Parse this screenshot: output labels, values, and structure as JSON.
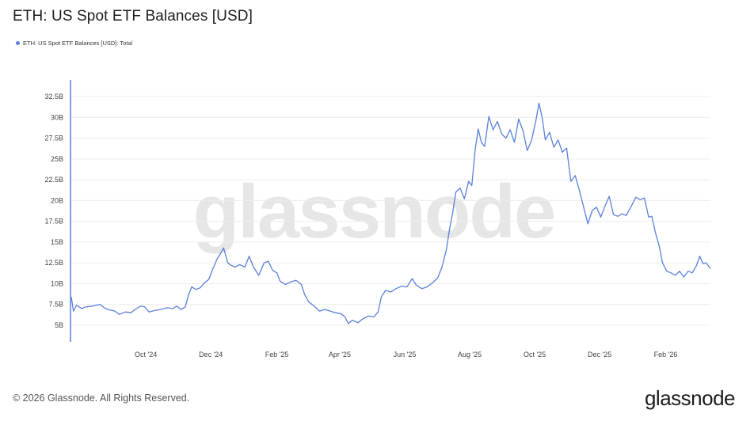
{
  "title": "ETH: US Spot ETF Balances [USD]",
  "legend": {
    "label": "ETH: US Spot ETF Balances [USD]: Total",
    "color": "#5b7fdb"
  },
  "watermark": "glassnode",
  "footer": "© 2026 Glassnode. All Rights Reserved.",
  "brand": "glassnode",
  "chart_data": {
    "type": "line",
    "title": "ETH: US Spot ETF Balances [USD]",
    "xlabel": "",
    "ylabel": "",
    "ylim": [
      3000000000,
      34500000000
    ],
    "x_range": [
      "2024-07-23",
      "2026-03-15"
    ],
    "grid": true,
    "legend_position": "top-left",
    "y_ticks": [
      {
        "value": 5000000000,
        "label": "5B"
      },
      {
        "value": 7500000000,
        "label": "7.5B"
      },
      {
        "value": 10000000000,
        "label": "10B"
      },
      {
        "value": 12500000000,
        "label": "12.5B"
      },
      {
        "value": 15000000000,
        "label": "15B"
      },
      {
        "value": 17500000000,
        "label": "17.5B"
      },
      {
        "value": 20000000000,
        "label": "20B"
      },
      {
        "value": 22500000000,
        "label": "22.5B"
      },
      {
        "value": 25000000000,
        "label": "25B"
      },
      {
        "value": 27500000000,
        "label": "27.5B"
      },
      {
        "value": 30000000000,
        "label": "30B"
      },
      {
        "value": 32500000000,
        "label": "32.5B"
      }
    ],
    "x_ticks": [
      {
        "date": "2024-10-01",
        "label": "Oct '24"
      },
      {
        "date": "2024-12-01",
        "label": "Dec '24"
      },
      {
        "date": "2025-02-01",
        "label": "Feb '25"
      },
      {
        "date": "2025-04-01",
        "label": "Apr '25"
      },
      {
        "date": "2025-06-01",
        "label": "Jun '25"
      },
      {
        "date": "2025-08-01",
        "label": "Aug '25"
      },
      {
        "date": "2025-10-01",
        "label": "Oct '25"
      },
      {
        "date": "2025-12-01",
        "label": "Dec '25"
      },
      {
        "date": "2026-02-01",
        "label": "Feb '26"
      }
    ],
    "series": [
      {
        "name": "ETH: US Spot ETF Balances [USD]: Total",
        "color": "#5b7fdb",
        "points": [
          [
            "2024-07-23",
            8.4
          ],
          [
            "2024-07-25",
            6.7
          ],
          [
            "2024-07-28",
            7.4
          ],
          [
            "2024-08-02",
            7.0
          ],
          [
            "2024-08-05",
            7.2
          ],
          [
            "2024-08-12",
            7.3
          ],
          [
            "2024-08-19",
            7.5
          ],
          [
            "2024-08-23",
            7.1
          ],
          [
            "2024-08-26",
            6.9
          ],
          [
            "2024-09-02",
            6.7
          ],
          [
            "2024-09-06",
            6.3
          ],
          [
            "2024-09-12",
            6.6
          ],
          [
            "2024-09-17",
            6.5
          ],
          [
            "2024-09-21",
            6.9
          ],
          [
            "2024-09-26",
            7.3
          ],
          [
            "2024-09-30",
            7.2
          ],
          [
            "2024-10-04",
            6.6
          ],
          [
            "2024-10-10",
            6.8
          ],
          [
            "2024-10-15",
            6.9
          ],
          [
            "2024-10-21",
            7.1
          ],
          [
            "2024-10-26",
            7.0
          ],
          [
            "2024-10-30",
            7.3
          ],
          [
            "2024-11-03",
            6.9
          ],
          [
            "2024-11-07",
            7.2
          ],
          [
            "2024-11-10",
            8.6
          ],
          [
            "2024-11-13",
            9.6
          ],
          [
            "2024-11-17",
            9.3
          ],
          [
            "2024-11-21",
            9.5
          ],
          [
            "2024-11-25",
            10.1
          ],
          [
            "2024-11-29",
            10.5
          ],
          [
            "2024-12-03",
            11.8
          ],
          [
            "2024-12-07",
            13.0
          ],
          [
            "2024-12-10",
            13.6
          ],
          [
            "2024-12-13",
            14.3
          ],
          [
            "2024-12-17",
            12.5
          ],
          [
            "2024-12-20",
            12.2
          ],
          [
            "2024-12-24",
            12.0
          ],
          [
            "2024-12-28",
            12.3
          ],
          [
            "2025-01-02",
            12.0
          ],
          [
            "2025-01-06",
            13.3
          ],
          [
            "2025-01-10",
            12.0
          ],
          [
            "2025-01-15",
            11.0
          ],
          [
            "2025-01-20",
            12.5
          ],
          [
            "2025-01-24",
            12.7
          ],
          [
            "2025-01-28",
            11.6
          ],
          [
            "2025-02-01",
            11.3
          ],
          [
            "2025-02-04",
            10.3
          ],
          [
            "2025-02-09",
            9.9
          ],
          [
            "2025-02-14",
            10.2
          ],
          [
            "2025-02-19",
            10.4
          ],
          [
            "2025-02-24",
            9.9
          ],
          [
            "2025-02-27",
            8.7
          ],
          [
            "2025-03-03",
            7.8
          ],
          [
            "2025-03-08",
            7.3
          ],
          [
            "2025-03-13",
            6.7
          ],
          [
            "2025-03-18",
            6.9
          ],
          [
            "2025-03-23",
            6.7
          ],
          [
            "2025-03-28",
            6.5
          ],
          [
            "2025-04-02",
            6.4
          ],
          [
            "2025-04-06",
            6.0
          ],
          [
            "2025-04-09",
            5.2
          ],
          [
            "2025-04-13",
            5.6
          ],
          [
            "2025-04-18",
            5.3
          ],
          [
            "2025-04-23",
            5.8
          ],
          [
            "2025-04-28",
            6.1
          ],
          [
            "2025-05-03",
            6.0
          ],
          [
            "2025-05-07",
            6.6
          ],
          [
            "2025-05-10",
            8.4
          ],
          [
            "2025-05-14",
            9.2
          ],
          [
            "2025-05-19",
            9.0
          ],
          [
            "2025-05-24",
            9.4
          ],
          [
            "2025-05-29",
            9.7
          ],
          [
            "2025-06-03",
            9.6
          ],
          [
            "2025-06-08",
            10.6
          ],
          [
            "2025-06-12",
            9.8
          ],
          [
            "2025-06-17",
            9.4
          ],
          [
            "2025-06-22",
            9.6
          ],
          [
            "2025-06-27",
            10.1
          ],
          [
            "2025-07-02",
            10.7
          ],
          [
            "2025-07-06",
            12.0
          ],
          [
            "2025-07-10",
            14.0
          ],
          [
            "2025-07-13",
            16.5
          ],
          [
            "2025-07-16",
            18.5
          ],
          [
            "2025-07-19",
            21.0
          ],
          [
            "2025-07-23",
            21.5
          ],
          [
            "2025-07-27",
            20.2
          ],
          [
            "2025-07-31",
            22.3
          ],
          [
            "2025-08-03",
            21.8
          ],
          [
            "2025-08-06",
            26.0
          ],
          [
            "2025-08-09",
            28.6
          ],
          [
            "2025-08-12",
            27.0
          ],
          [
            "2025-08-15",
            26.5
          ],
          [
            "2025-08-19",
            30.1
          ],
          [
            "2025-08-23",
            28.5
          ],
          [
            "2025-08-27",
            29.5
          ],
          [
            "2025-08-31",
            28.0
          ],
          [
            "2025-09-04",
            27.5
          ],
          [
            "2025-09-08",
            28.5
          ],
          [
            "2025-09-12",
            27.0
          ],
          [
            "2025-09-16",
            29.8
          ],
          [
            "2025-09-20",
            28.4
          ],
          [
            "2025-09-24",
            26.0
          ],
          [
            "2025-09-28",
            27.2
          ],
          [
            "2025-10-02",
            29.5
          ],
          [
            "2025-10-05",
            31.7
          ],
          [
            "2025-10-08",
            30.0
          ],
          [
            "2025-10-11",
            27.3
          ],
          [
            "2025-10-15",
            28.2
          ],
          [
            "2025-10-19",
            26.4
          ],
          [
            "2025-10-23",
            27.3
          ],
          [
            "2025-10-27",
            25.8
          ],
          [
            "2025-10-31",
            26.3
          ],
          [
            "2025-11-04",
            22.3
          ],
          [
            "2025-11-08",
            23.0
          ],
          [
            "2025-11-12",
            21.2
          ],
          [
            "2025-11-16",
            19.2
          ],
          [
            "2025-11-20",
            17.2
          ],
          [
            "2025-11-24",
            18.8
          ],
          [
            "2025-11-28",
            19.2
          ],
          [
            "2025-12-02",
            18.0
          ],
          [
            "2025-12-06",
            19.3
          ],
          [
            "2025-12-10",
            20.5
          ],
          [
            "2025-12-14",
            18.3
          ],
          [
            "2025-12-18",
            18.1
          ],
          [
            "2025-12-22",
            18.4
          ],
          [
            "2025-12-26",
            18.2
          ],
          [
            "2025-12-31",
            19.4
          ],
          [
            "2026-01-04",
            20.4
          ],
          [
            "2026-01-08",
            20.1
          ],
          [
            "2026-01-12",
            20.3
          ],
          [
            "2026-01-16",
            18.0
          ],
          [
            "2026-01-19",
            18.1
          ],
          [
            "2026-01-22",
            16.3
          ],
          [
            "2026-01-26",
            14.5
          ],
          [
            "2026-01-29",
            12.5
          ],
          [
            "2026-02-02",
            11.5
          ],
          [
            "2026-02-06",
            11.3
          ],
          [
            "2026-02-10",
            11.0
          ],
          [
            "2026-02-14",
            11.5
          ],
          [
            "2026-02-18",
            10.8
          ],
          [
            "2026-02-22",
            11.5
          ],
          [
            "2026-02-26",
            11.3
          ],
          [
            "2026-03-02",
            12.2
          ],
          [
            "2026-03-05",
            13.3
          ],
          [
            "2026-03-08",
            12.4
          ],
          [
            "2026-03-11",
            12.5
          ],
          [
            "2026-03-15",
            11.8
          ]
        ],
        "values_unit": "billion USD"
      }
    ]
  }
}
